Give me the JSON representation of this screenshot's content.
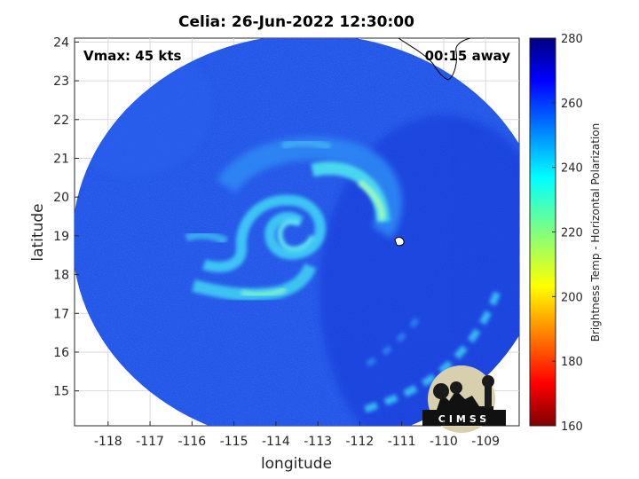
{
  "chart_data": {
    "type": "heatmap",
    "title": "Celia: 26-Jun-2022 12:30:00",
    "xlabel": "longitude",
    "ylabel": "latitude",
    "xlim": [
      -118.8,
      -108.2
    ],
    "ylim": [
      14.1,
      24.1
    ],
    "x_ticks": [
      -118,
      -117,
      -116,
      -115,
      -114,
      -113,
      -112,
      -111,
      -110,
      -109
    ],
    "y_ticks": [
      15,
      16,
      17,
      18,
      19,
      20,
      21,
      22,
      23,
      24
    ],
    "grid": true,
    "annotations": {
      "vmax": "Vmax: 45 kts",
      "time_offset": "00:15 away"
    },
    "storm_center": {
      "lon": -113.7,
      "lat": 19.2
    },
    "swath": {
      "center_lon": -113.2,
      "center_lat": 18.9,
      "radius_lon": 5.65,
      "radius_lat": 5.3
    },
    "colorbar": {
      "label": "Brightness Temp - Horizontal Polarization",
      "range": [
        160,
        280
      ],
      "ticks": [
        160,
        180,
        200,
        220,
        240,
        260,
        280
      ],
      "colormap": "jet"
    },
    "field_notes": {
      "background_value": 262,
      "features": [
        {
          "name": "inner spiral core",
          "lon": -113.8,
          "lat": 19.3,
          "value": 242
        },
        {
          "name": "northeast outer band",
          "lon": -111.6,
          "lat": 19.8,
          "value": 236
        },
        {
          "name": "southwest rainband",
          "lon": -114.7,
          "lat": 17.5,
          "value": 240
        },
        {
          "name": "southeast band segments",
          "lon": -110.2,
          "lat": 15.8,
          "value": 248
        }
      ]
    }
  },
  "logo": {
    "text": "CIMSS"
  },
  "colors": {
    "swath_blue": "#1f4fe6",
    "band_cyan": "#3fd0f0",
    "coastline": "#000000"
  }
}
